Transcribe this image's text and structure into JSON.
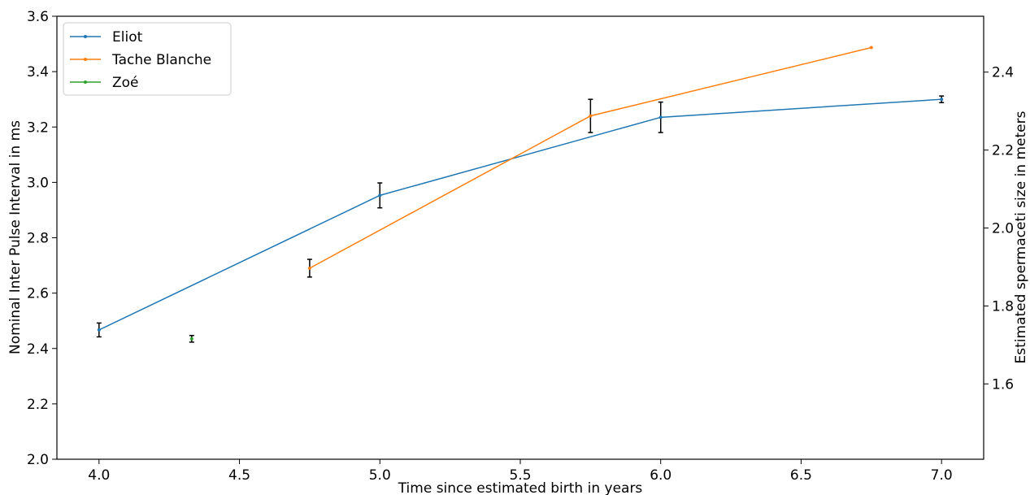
{
  "chart_data": {
    "type": "line",
    "xlabel": "Time since estimated birth in years",
    "ylabel": "Nominal Inter Pulse Interval in ms",
    "y2label": "Estimated spermaceti size in meters",
    "xlim": [
      3.85,
      7.15
    ],
    "ylim": [
      2.0,
      3.6
    ],
    "y2lim": [
      1.4067,
      2.5433
    ],
    "x_ticks": [
      "4.0",
      "4.5",
      "5.0",
      "5.5",
      "6.0",
      "6.5",
      "7.0"
    ],
    "y_ticks": [
      "2.0",
      "2.2",
      "2.4",
      "2.6",
      "2.8",
      "3.0",
      "3.2",
      "3.4",
      "3.6"
    ],
    "y2_ticks": [
      "1.6",
      "1.8",
      "2.0",
      "2.2",
      "2.4"
    ],
    "legend_position": "upper-left",
    "grid": false,
    "series": [
      {
        "name": "Eliot",
        "color": "#1f77b4",
        "x": [
          4.0,
          5.0,
          6.0,
          7.0
        ],
        "y": [
          2.467,
          2.953,
          3.235,
          3.3
        ],
        "err": [
          0.025,
          0.045,
          0.055,
          0.012
        ]
      },
      {
        "name": "Tache Blanche",
        "color": "#ff7f0e",
        "x": [
          4.75,
          5.75,
          6.75
        ],
        "y": [
          2.69,
          3.24,
          3.487
        ],
        "err": [
          0.032,
          0.06,
          0.0
        ]
      },
      {
        "name": "Zoé",
        "color": "#2ca02c",
        "x": [
          4.33
        ],
        "y": [
          2.435
        ],
        "err": [
          0.012
        ]
      }
    ]
  }
}
